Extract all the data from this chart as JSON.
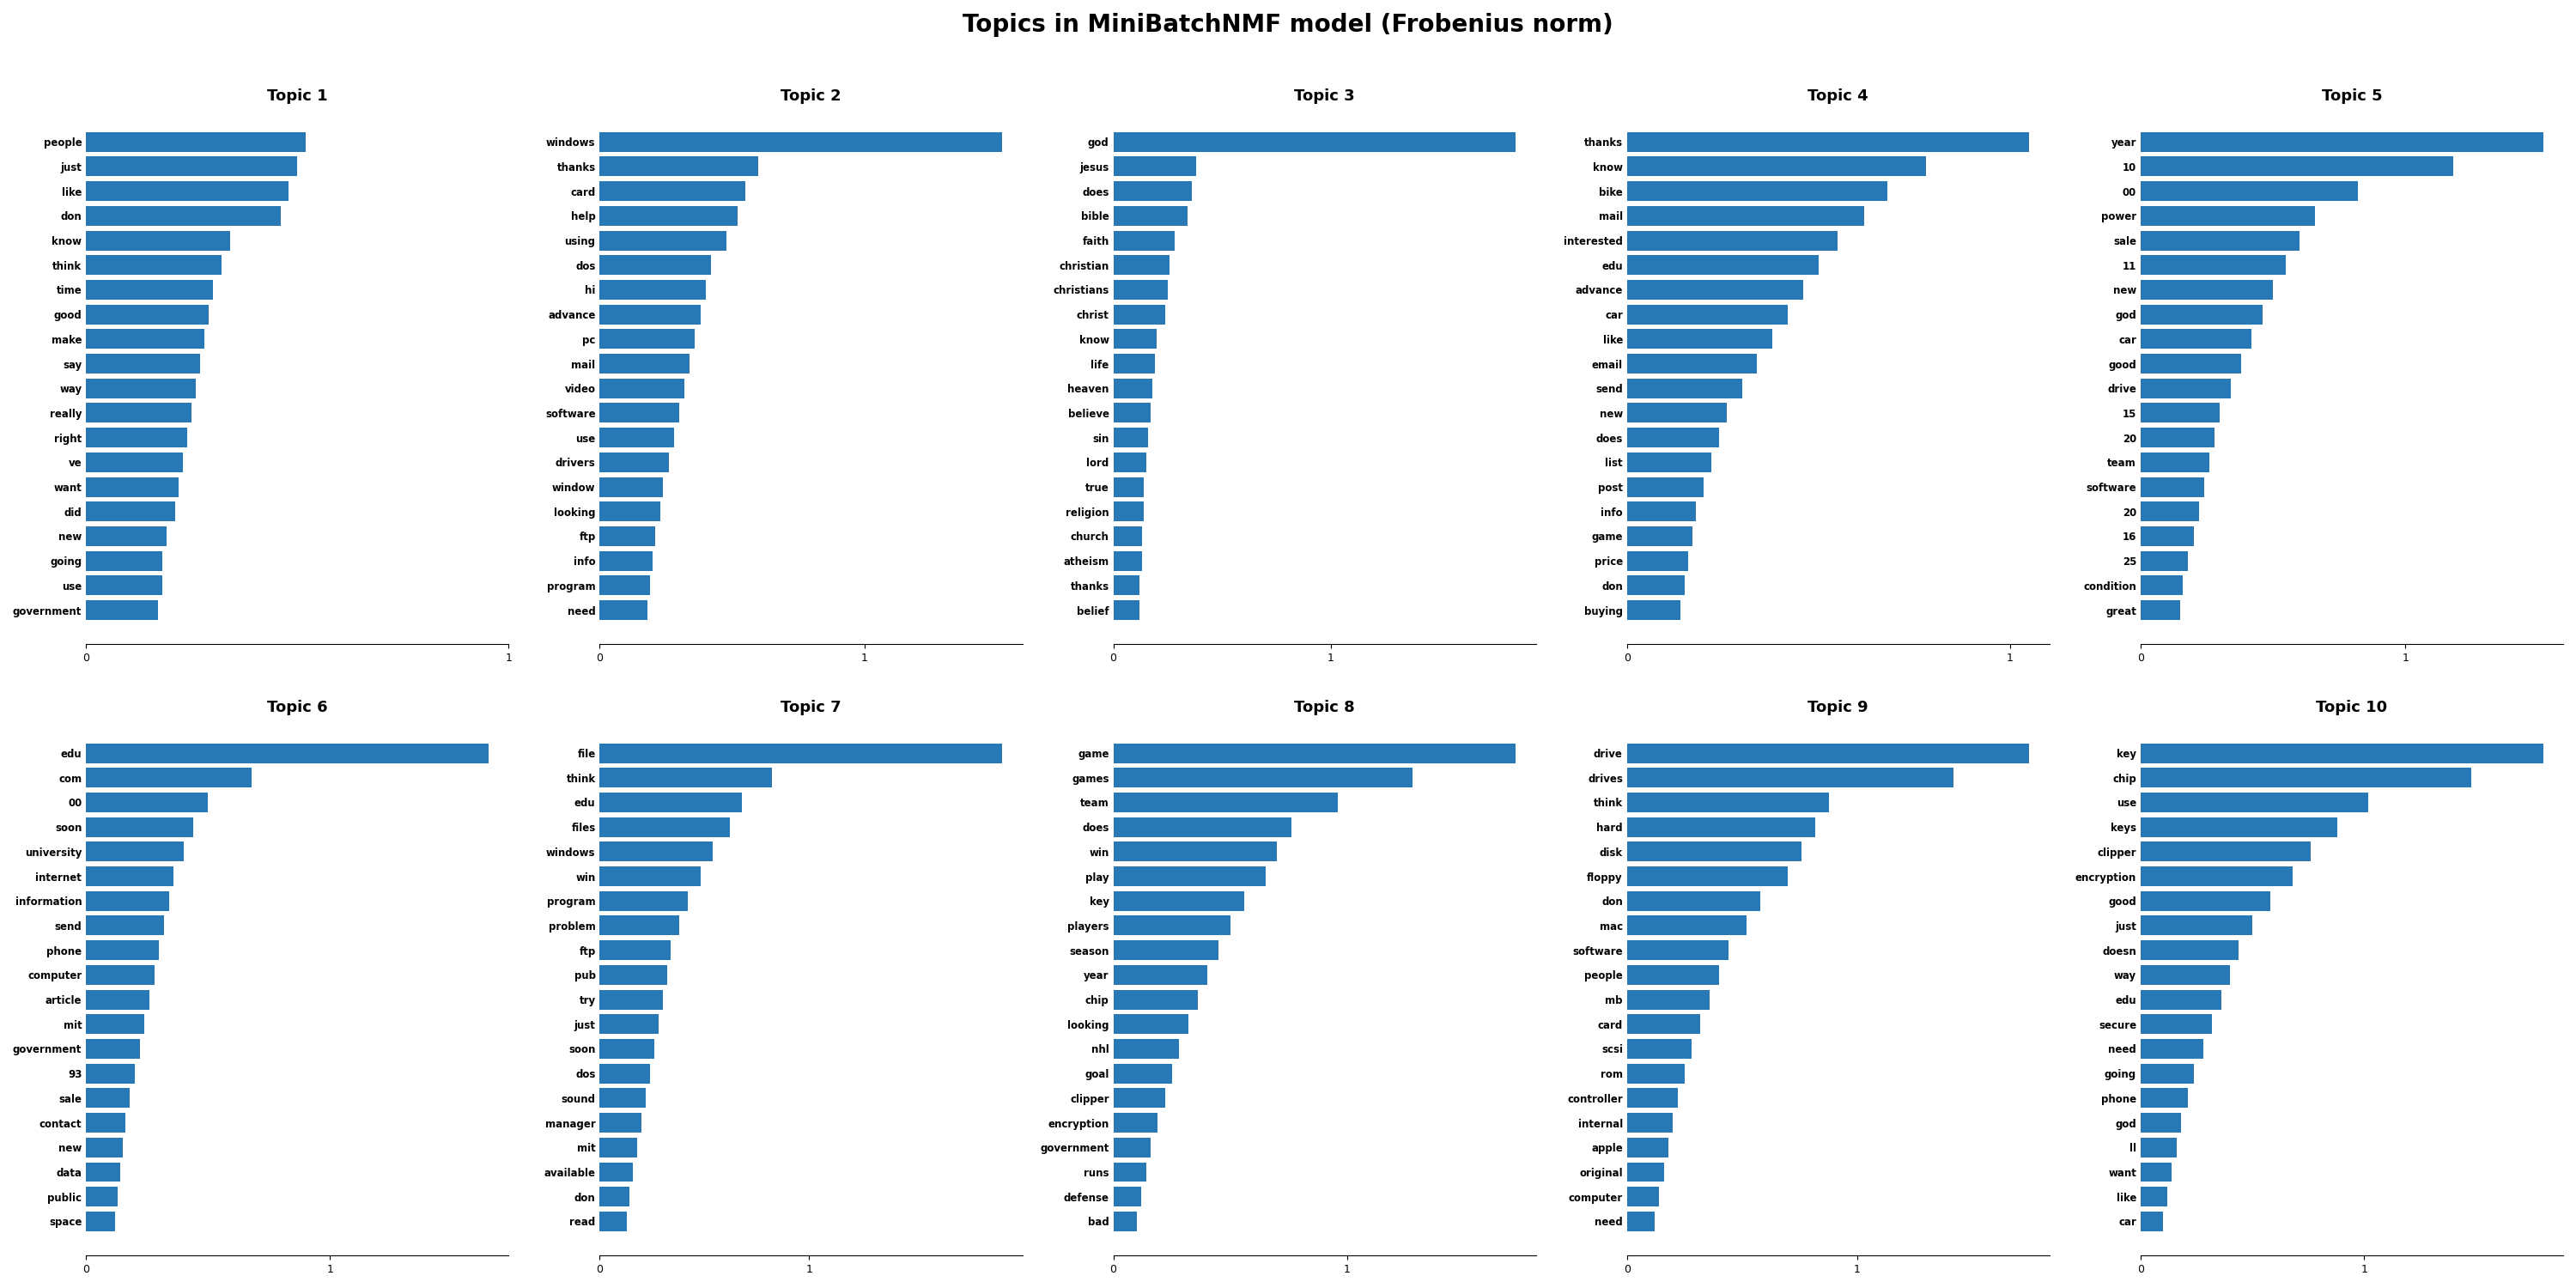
{
  "title": "Topics in MiniBatchNMF model (Frobenius norm)",
  "bar_color": "#2878b5",
  "topics": [
    {
      "title": "Topic 1",
      "words": [
        "people",
        "just",
        "like",
        "don",
        "know",
        "think",
        "time",
        "good",
        "make",
        "say",
        "way",
        "really",
        "right",
        "ve",
        "want",
        "did",
        "new",
        "going",
        "use",
        "government"
      ],
      "values": [
        0.52,
        0.5,
        0.48,
        0.46,
        0.34,
        0.32,
        0.3,
        0.29,
        0.28,
        0.27,
        0.26,
        0.25,
        0.24,
        0.23,
        0.22,
        0.21,
        0.19,
        0.18,
        0.18,
        0.17
      ]
    },
    {
      "title": "Topic 2",
      "words": [
        "windows",
        "thanks",
        "card",
        "help",
        "using",
        "dos",
        "hi",
        "advance",
        "pc",
        "mail",
        "video",
        "software",
        "use",
        "drivers",
        "window",
        "looking",
        "ftp",
        "info",
        "program",
        "need"
      ],
      "values": [
        1.52,
        0.6,
        0.55,
        0.52,
        0.48,
        0.42,
        0.4,
        0.38,
        0.36,
        0.34,
        0.32,
        0.3,
        0.28,
        0.26,
        0.24,
        0.23,
        0.21,
        0.2,
        0.19,
        0.18
      ]
    },
    {
      "title": "Topic 3",
      "words": [
        "god",
        "jesus",
        "does",
        "bible",
        "faith",
        "christian",
        "christians",
        "christ",
        "know",
        "life",
        "heaven",
        "believe",
        "sin",
        "lord",
        "true",
        "religion",
        "church",
        "atheism",
        "thanks",
        "belief"
      ],
      "values": [
        1.85,
        0.38,
        0.36,
        0.34,
        0.28,
        0.26,
        0.25,
        0.24,
        0.2,
        0.19,
        0.18,
        0.17,
        0.16,
        0.15,
        0.14,
        0.14,
        0.13,
        0.13,
        0.12,
        0.12
      ]
    },
    {
      "title": "Topic 4",
      "words": [
        "thanks",
        "know",
        "bike",
        "mail",
        "interested",
        "edu",
        "advance",
        "car",
        "like",
        "email",
        "send",
        "new",
        "does",
        "list",
        "post",
        "info",
        "game",
        "price",
        "don",
        "buying"
      ],
      "values": [
        1.05,
        0.78,
        0.68,
        0.62,
        0.55,
        0.5,
        0.46,
        0.42,
        0.38,
        0.34,
        0.3,
        0.26,
        0.24,
        0.22,
        0.2,
        0.18,
        0.17,
        0.16,
        0.15,
        0.14
      ]
    },
    {
      "title": "Topic 5",
      "words": [
        "year",
        "10",
        "00",
        "power",
        "sale",
        "11",
        "new",
        "god",
        "car",
        "good",
        "drive",
        "15",
        "20",
        "team",
        "software",
        "20",
        "16",
        "25",
        "condition",
        "great"
      ],
      "values": [
        1.52,
        1.18,
        0.82,
        0.66,
        0.6,
        0.55,
        0.5,
        0.46,
        0.42,
        0.38,
        0.34,
        0.3,
        0.28,
        0.26,
        0.24,
        0.22,
        0.2,
        0.18,
        0.16,
        0.15
      ]
    },
    {
      "title": "Topic 6",
      "words": [
        "edu",
        "com",
        "00",
        "soon",
        "university",
        "internet",
        "information",
        "send",
        "phone",
        "computer",
        "article",
        "mit",
        "government",
        "93",
        "sale",
        "contact",
        "new",
        "data",
        "public",
        "space"
      ],
      "values": [
        1.65,
        0.68,
        0.5,
        0.44,
        0.4,
        0.36,
        0.34,
        0.32,
        0.3,
        0.28,
        0.26,
        0.24,
        0.22,
        0.2,
        0.18,
        0.16,
        0.15,
        0.14,
        0.13,
        0.12
      ]
    },
    {
      "title": "Topic 7",
      "words": [
        "file",
        "think",
        "edu",
        "files",
        "windows",
        "win",
        "program",
        "problem",
        "ftp",
        "pub",
        "try",
        "just",
        "soon",
        "dos",
        "sound",
        "manager",
        "mit",
        "available",
        "don",
        "read"
      ],
      "values": [
        1.92,
        0.82,
        0.68,
        0.62,
        0.54,
        0.48,
        0.42,
        0.38,
        0.34,
        0.32,
        0.3,
        0.28,
        0.26,
        0.24,
        0.22,
        0.2,
        0.18,
        0.16,
        0.14,
        0.13
      ]
    },
    {
      "title": "Topic 8",
      "words": [
        "game",
        "games",
        "team",
        "does",
        "win",
        "play",
        "key",
        "players",
        "season",
        "year",
        "chip",
        "looking",
        "nhl",
        "goal",
        "clipper",
        "encryption",
        "government",
        "runs",
        "defense",
        "bad"
      ],
      "values": [
        1.72,
        1.28,
        0.96,
        0.76,
        0.7,
        0.65,
        0.56,
        0.5,
        0.45,
        0.4,
        0.36,
        0.32,
        0.28,
        0.25,
        0.22,
        0.19,
        0.16,
        0.14,
        0.12,
        0.1
      ]
    },
    {
      "title": "Topic 9",
      "words": [
        "drive",
        "drives",
        "think",
        "hard",
        "disk",
        "floppy",
        "don",
        "mac",
        "software",
        "people",
        "mb",
        "card",
        "scsi",
        "rom",
        "controller",
        "internal",
        "apple",
        "original",
        "computer",
        "need"
      ],
      "values": [
        1.75,
        1.42,
        0.88,
        0.82,
        0.76,
        0.7,
        0.58,
        0.52,
        0.44,
        0.4,
        0.36,
        0.32,
        0.28,
        0.25,
        0.22,
        0.2,
        0.18,
        0.16,
        0.14,
        0.12
      ]
    },
    {
      "title": "Topic 10",
      "words": [
        "key",
        "chip",
        "use",
        "keys",
        "clipper",
        "encryption",
        "good",
        "just",
        "doesn",
        "way",
        "edu",
        "secure",
        "need",
        "going",
        "phone",
        "god",
        "ll",
        "want",
        "like",
        "car"
      ],
      "values": [
        1.8,
        1.48,
        1.02,
        0.88,
        0.76,
        0.68,
        0.58,
        0.5,
        0.44,
        0.4,
        0.36,
        0.32,
        0.28,
        0.24,
        0.21,
        0.18,
        0.16,
        0.14,
        0.12,
        0.1
      ]
    }
  ]
}
